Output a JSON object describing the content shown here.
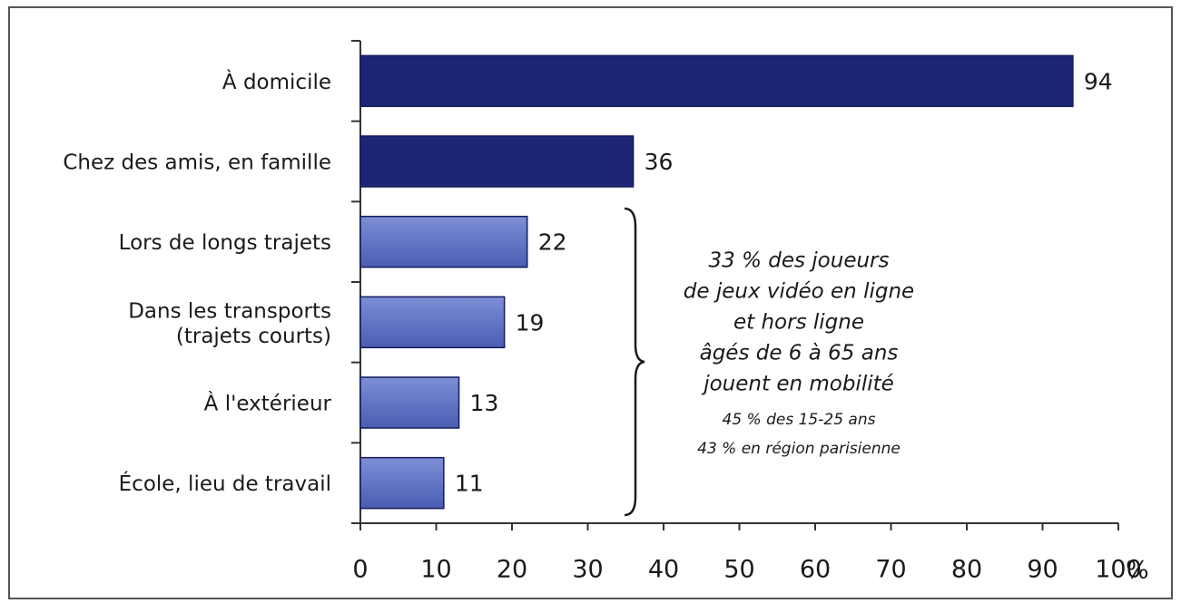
{
  "chart_data": {
    "type": "bar",
    "orientation": "horizontal",
    "categories": [
      "À domicile",
      "Chez des amis, en famille",
      "Lors de longs trajets",
      "Dans les transports\n(trajets courts)",
      "À l'extérieur",
      "École, lieu de travail"
    ],
    "values": [
      94,
      36,
      22,
      19,
      13,
      11
    ],
    "colors": [
      "#1b2675",
      "#1b2675",
      "#5b6fc2",
      "#5b6fc2",
      "#5b6fc2",
      "#5b6fc2"
    ],
    "xlim": [
      0,
      100
    ],
    "xticks": [
      0,
      10,
      20,
      30,
      40,
      50,
      60,
      70,
      80,
      90,
      100
    ],
    "x_unit": "%",
    "annotation": [
      "33 % des joueurs",
      "de jeux vidéo en ligne",
      "et hors ligne",
      "âgés de 6 à 65 ans",
      "jouent en mobilité"
    ],
    "annotation_note": [
      "45 % des 15-25 ans",
      "43 % en région parisienne"
    ]
  }
}
